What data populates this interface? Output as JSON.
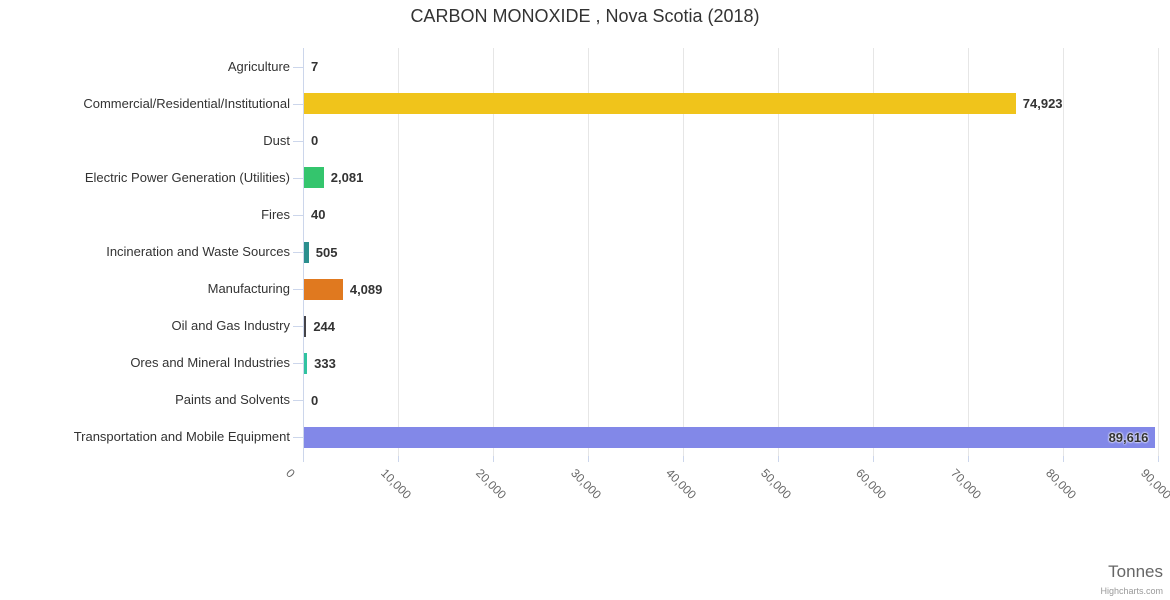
{
  "credit": "Highcharts.com",
  "chart_data": {
    "type": "bar",
    "orientation": "horizontal",
    "title": "CARBON MONOXIDE , Nova Scotia (2018)",
    "xlabel": "Tonnes",
    "ylabel": "",
    "xlim": [
      0,
      90000
    ],
    "grid": true,
    "legend": "none",
    "categories": [
      "Agriculture",
      "Commercial/Residential/Institutional",
      "Dust",
      "Electric Power Generation (Utilities)",
      "Fires",
      "Incineration and Waste Sources",
      "Manufacturing",
      "Oil and Gas Industry",
      "Ores and Mineral Industries",
      "Paints and Solvents",
      "Transportation and Mobile Equipment"
    ],
    "values": [
      7,
      74923,
      0,
      2081,
      40,
      505,
      4089,
      244,
      333,
      0,
      89616
    ],
    "data_labels": [
      "7",
      "74,923",
      "0",
      "2,081",
      "40",
      "505",
      "4,089",
      "244",
      "333",
      "0",
      "89,616"
    ],
    "colors": [
      null,
      "#f0c41b",
      null,
      "#34c56d",
      null,
      "#2b8f8e",
      "#e0791f",
      "#434348",
      "#31c3a0",
      null,
      "#8288e8"
    ],
    "x_ticks": [
      0,
      10000,
      20000,
      30000,
      40000,
      50000,
      60000,
      70000,
      80000,
      90000
    ],
    "x_tick_labels": [
      "0",
      "10,000",
      "20,000",
      "30,000",
      "40,000",
      "50,000",
      "60,000",
      "70,000",
      "80,000",
      "90,000"
    ],
    "axis_colors": {
      "axis_line": "#ccd6eb",
      "gridline": "#e6e6e6"
    }
  }
}
